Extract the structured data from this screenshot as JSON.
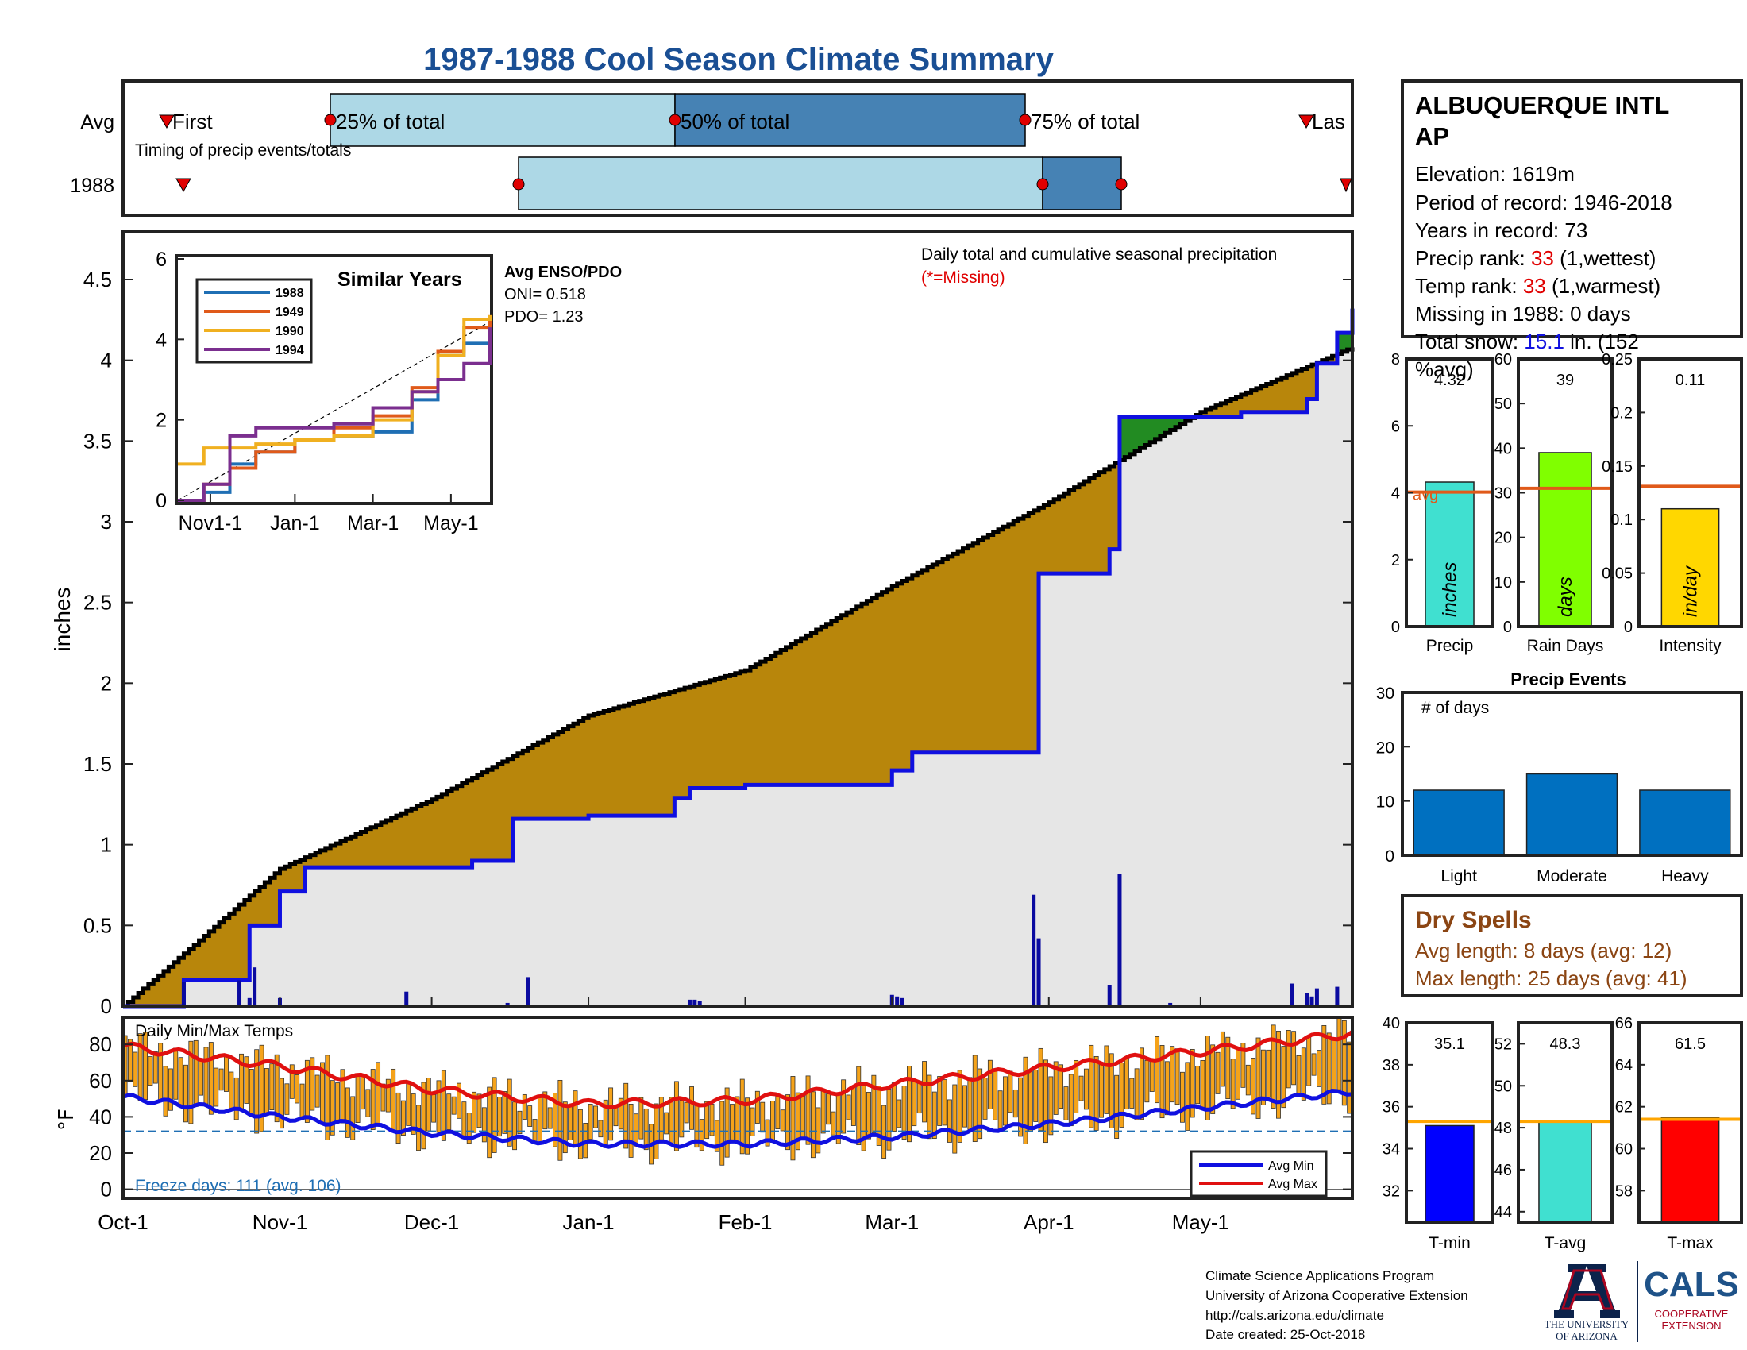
{
  "title": "1987-1988 Cool Season Climate Summary",
  "timing": {
    "caption": "Timing of precip events/totals",
    "rows": [
      "Avg",
      "1988"
    ],
    "avg_labels": {
      "first": "First",
      "p25": "25% of total",
      "p50": "50% of total",
      "p75": "75% of total",
      "last": "Las"
    }
  },
  "station": {
    "name_line1": "ALBUQUERQUE INTL",
    "name_line2": "AP",
    "elevation": "Elevation: 1619m",
    "period": "Period of record: 1946-2018",
    "years": "Years in record: 73",
    "precip_rank_label": "Precip rank: ",
    "precip_rank_value": "33",
    "precip_rank_suffix": " (1,wettest)",
    "temp_rank_label": "Temp rank: ",
    "temp_rank_value": "33",
    "temp_rank_suffix": " (1,warmest)",
    "missing": "Missing in 1988: 0 days",
    "snow_label": "Total snow: ",
    "snow_value": "15.1",
    "snow_suffix": " in. (152",
    "snow_line2": "%avg)"
  },
  "main_chart": {
    "annotation": "Daily total and cumulative seasonal precipitation",
    "missing_note": "(*=Missing)",
    "ylabel": "inches",
    "y_ticks": [
      "0",
      "0.5",
      "1",
      "1.5",
      "2",
      "2.5",
      "3",
      "3.5",
      "4",
      "4.5"
    ],
    "x_ticks": [
      "Oct-1",
      "Nov-1",
      "Dec-1",
      "Jan-1",
      "Feb-1",
      "Mar-1",
      "Apr-1",
      "May-1"
    ]
  },
  "inset": {
    "title": "Similar Years",
    "legend": [
      "1988",
      "1949",
      "1990",
      "1994"
    ],
    "x_ticks": [
      "Nov1-1",
      "Jan-1",
      "Mar-1",
      "May-1"
    ],
    "y_ticks": [
      "0",
      "2",
      "4",
      "6"
    ],
    "enso_title": "Avg ENSO/PDO",
    "oni": "ONI= 0.518",
    "pdo": "PDO= 1.23"
  },
  "temp_chart": {
    "label": "Daily Min/Max Temps",
    "ylabel": "°F",
    "y_ticks": [
      "0",
      "20",
      "40",
      "60",
      "80"
    ],
    "freeze": "Freeze days: 111 (avg. 106)",
    "legend": [
      "Avg Min",
      "Avg Max"
    ]
  },
  "bars_precip": [
    {
      "label": "Precip",
      "value_text": "4.32",
      "unit": "inches",
      "y_ticks": [
        "0",
        "2",
        "4",
        "6",
        "8"
      ],
      "avg_label": "avg"
    },
    {
      "label": "Rain Days",
      "value_text": "39",
      "unit": "days",
      "y_ticks": [
        "0",
        "10",
        "20",
        "30",
        "40",
        "50",
        "60"
      ]
    },
    {
      "label": "Intensity",
      "value_text": "0.11",
      "unit": "in/day",
      "y_ticks": [
        "0",
        "0.05",
        "0.1",
        "0.15",
        "0.2",
        "0.25"
      ]
    }
  ],
  "events": {
    "title": "Precip Events",
    "ylabel": "# of days",
    "y_ticks": [
      "0",
      "10",
      "20",
      "30"
    ],
    "categories": [
      "Light",
      "Moderate",
      "Heavy"
    ]
  },
  "dry_spells": {
    "title": "Dry Spells",
    "avg_length": "Avg length: 8 days (avg: 12)",
    "max_length": "Max length: 25 days (avg: 41)"
  },
  "bars_temp": [
    {
      "label": "T-min",
      "value_text": "35.1",
      "y_ticks": [
        "32",
        "34",
        "36",
        "38",
        "40"
      ]
    },
    {
      "label": "T-avg",
      "value_text": "48.3",
      "y_ticks": [
        "44",
        "46",
        "48",
        "50",
        "52"
      ]
    },
    {
      "label": "T-max",
      "value_text": "61.5",
      "y_ticks": [
        "58",
        "60",
        "62",
        "64",
        "66"
      ]
    }
  ],
  "footer": {
    "line1": "Climate Science Applications Program",
    "line2": "University of Arizona Cooperative Extension",
    "line3": "http://cals.arizona.edu/climate",
    "line4": " Date created: 25-Oct-2018",
    "ua_line1": "THE UNIVERSITY",
    "ua_line2": "OF ARIZONA",
    "cals_word": "CALS",
    "cals_line1": "COOPERATIVE",
    "cals_line2": "EXTENSION"
  },
  "chart_data": [
    {
      "type": "area",
      "title": "Daily total and cumulative seasonal precipitation",
      "ylabel": "inches",
      "ylim": [
        0,
        4.8
      ],
      "x_range": [
        "Oct-1",
        "May-31"
      ],
      "series": [
        {
          "name": "1988",
          "color": "#1010e0",
          "x": [
            "Oct-1",
            "Oct-13",
            "Oct-26",
            "Nov-1",
            "Nov-6",
            "Nov-25",
            "Dec-9",
            "Dec-17",
            "Dec-18",
            "Jan-1",
            "Jan-18",
            "Jan-21",
            "Feb-1",
            "Feb-28",
            "Mar-1",
            "Mar-5",
            "Mar-29",
            "Mar-30",
            "Apr-13",
            "Apr-15",
            "May-9",
            "May-22",
            "May-24",
            "May-28",
            "May-31"
          ],
          "y": [
            0.0,
            0.16,
            0.5,
            0.71,
            0.86,
            0.86,
            0.9,
            1.16,
            1.16,
            1.18,
            1.29,
            1.35,
            1.37,
            1.37,
            1.46,
            1.57,
            1.57,
            2.68,
            2.83,
            3.65,
            3.68,
            3.76,
            3.98,
            4.17,
            4.32
          ]
        },
        {
          "name": "Average cumulative",
          "color": "#000000",
          "x": [
            "Oct-1",
            "Oct-15",
            "Nov-1",
            "Dec-1",
            "Jan-1",
            "Feb-1",
            "Mar-1",
            "Apr-1",
            "May-1",
            "May-31"
          ],
          "y": [
            0.0,
            0.38,
            0.85,
            1.28,
            1.8,
            2.08,
            2.6,
            3.12,
            3.68,
            4.08
          ]
        }
      ],
      "daily_bars": {
        "x": [
          "Oct-13",
          "Oct-24",
          "Oct-26",
          "Oct-27",
          "Nov-1",
          "Nov-26",
          "Dec-16",
          "Dec-20",
          "Jan-21",
          "Jan-22",
          "Jan-23",
          "Mar-1",
          "Mar-2",
          "Mar-3",
          "Mar-29",
          "Mar-30",
          "Apr-13",
          "Apr-15",
          "Apr-25",
          "May-19",
          "May-22",
          "May-23",
          "May-24",
          "May-28"
        ],
        "y": [
          0.15,
          0.16,
          0.05,
          0.24,
          0.05,
          0.09,
          0.02,
          0.18,
          0.04,
          0.04,
          0.03,
          0.07,
          0.06,
          0.05,
          0.69,
          0.42,
          0.13,
          0.82,
          0.02,
          0.14,
          0.08,
          0.06,
          0.11,
          0.12
        ]
      }
    },
    {
      "type": "line",
      "title": "Similar Years",
      "ylim": [
        0,
        6
      ],
      "series": [
        {
          "name": "1988",
          "color": "#1f6fb4",
          "x": [
            0,
            20,
            40,
            60,
            90,
            120,
            150,
            180,
            200,
            220,
            240
          ],
          "y": [
            0,
            0.2,
            0.9,
            1.2,
            1.5,
            1.6,
            1.7,
            2.5,
            3.6,
            3.9,
            4.3
          ]
        },
        {
          "name": "1949",
          "color": "#e05a1a",
          "x": [
            0,
            20,
            40,
            60,
            90,
            120,
            150,
            180,
            200,
            220,
            240
          ],
          "y": [
            0,
            0.4,
            0.8,
            1.2,
            1.5,
            1.8,
            2.1,
            2.8,
            3.7,
            4.3,
            4.6
          ]
        },
        {
          "name": "1990",
          "color": "#f0b020",
          "x": [
            0,
            20,
            40,
            60,
            90,
            120,
            150,
            180,
            200,
            220,
            240
          ],
          "y": [
            0.9,
            1.3,
            1.3,
            1.4,
            1.5,
            1.6,
            2.0,
            2.7,
            3.6,
            4.5,
            4.6
          ]
        },
        {
          "name": "1994",
          "color": "#7b2f8f",
          "x": [
            0,
            20,
            40,
            60,
            90,
            120,
            150,
            180,
            200,
            220,
            240
          ],
          "y": [
            0,
            0.4,
            1.6,
            1.8,
            1.8,
            1.9,
            2.3,
            2.7,
            3.0,
            3.4,
            4.3
          ]
        }
      ]
    },
    {
      "type": "bar",
      "title": "Daily Min/Max Temps",
      "ylabel": "°F",
      "ylim": [
        -5,
        95
      ],
      "series": [
        {
          "name": "Avg Min",
          "color": "#1010e0",
          "x": [
            "Oct-1",
            "Nov-1",
            "Dec-1",
            "Jan-1",
            "Feb-1",
            "Mar-1",
            "Apr-1",
            "May-1",
            "May-31"
          ],
          "y": [
            51,
            40,
            31,
            25,
            25,
            29,
            36,
            45,
            54
          ]
        },
        {
          "name": "Avg Max",
          "color": "#e01010",
          "x": [
            "Oct-1",
            "Nov-1",
            "Dec-1",
            "Jan-1",
            "Feb-1",
            "Mar-1",
            "Apr-1",
            "May-1",
            "May-31"
          ],
          "y": [
            79,
            68,
            55,
            47,
            49,
            58,
            67,
            76,
            86
          ]
        }
      ],
      "freeze_line": 32
    },
    {
      "type": "bar",
      "categories": [
        "Precip",
        "Rain Days",
        "Intensity"
      ],
      "values": [
        4.32,
        39,
        0.11
      ],
      "averages": [
        4.02,
        31,
        0.131
      ],
      "ylim": [
        [
          0,
          8
        ],
        [
          0,
          60
        ],
        [
          0,
          0.25
        ]
      ],
      "colors": [
        "#40e0d0",
        "#80ff00",
        "#ffd700"
      ]
    },
    {
      "type": "bar",
      "title": "Precip Events",
      "ylabel": "# of days",
      "categories": [
        "Light",
        "Moderate",
        "Heavy"
      ],
      "values": [
        12,
        15,
        12
      ],
      "ylim": [
        0,
        30
      ]
    },
    {
      "type": "bar",
      "categories": [
        "T-min",
        "T-avg",
        "T-max"
      ],
      "values": [
        35.1,
        48.3,
        61.5
      ],
      "averages": [
        35.3,
        48.3,
        61.4
      ],
      "ylim": [
        [
          30.5,
          40
        ],
        [
          43.5,
          53
        ],
        [
          56.5,
          66
        ]
      ],
      "colors": [
        "#0000ff",
        "#40e0d0",
        "#ff0000"
      ]
    }
  ]
}
